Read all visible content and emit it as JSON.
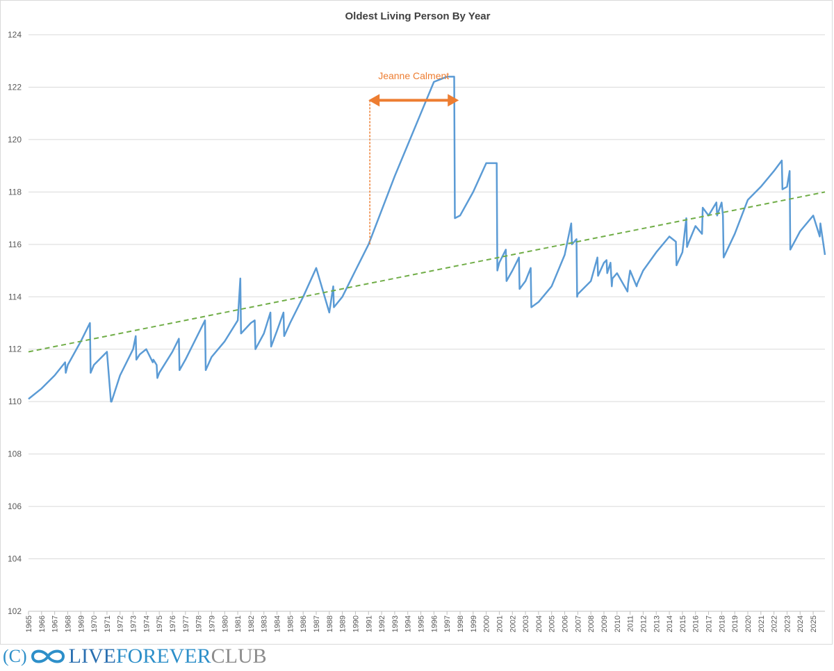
{
  "chart_data": {
    "type": "line",
    "title": "Oldest Living Person By Year",
    "xlabel": "",
    "ylabel": "",
    "ylim": [
      102,
      124
    ],
    "yticks": [
      102,
      104,
      106,
      108,
      110,
      112,
      114,
      116,
      118,
      120,
      122,
      124
    ],
    "xlim": [
      1965,
      2025.9
    ],
    "xticks": [
      1965,
      1966,
      1967,
      1968,
      1969,
      1970,
      1971,
      1972,
      1973,
      1974,
      1975,
      1976,
      1977,
      1978,
      1979,
      1980,
      1981,
      1982,
      1983,
      1984,
      1985,
      1986,
      1987,
      1988,
      1989,
      1990,
      1991,
      1992,
      1993,
      1994,
      1995,
      1996,
      1997,
      1998,
      1999,
      2000,
      2001,
      2002,
      2003,
      2004,
      2005,
      2006,
      2007,
      2008,
      2009,
      2010,
      2011,
      2012,
      2013,
      2014,
      2015,
      2016,
      2017,
      2018,
      2019,
      2020,
      2021,
      2022,
      2023,
      2024,
      2025
    ],
    "grid": true,
    "legend": "none",
    "series": [
      {
        "color": "#5b9bd5",
        "x": [
          1965.0,
          1966.0,
          1967.0,
          1967.8,
          1967.85,
          1968.0,
          1969.0,
          1969.7,
          1969.75,
          1970.0,
          1971.0,
          1971.3,
          1971.35,
          1972.0,
          1973.0,
          1973.2,
          1973.25,
          1973.5,
          1974.0,
          1974.5,
          1974.55,
          1974.8,
          1974.85,
          1975.0,
          1976.0,
          1976.5,
          1976.55,
          1977.0,
          1978.0,
          1978.5,
          1978.55,
          1979.0,
          1980.0,
          1981.0,
          1981.2,
          1981.25,
          1982.0,
          1982.3,
          1982.35,
          1983.0,
          1983.5,
          1983.55,
          1984.0,
          1984.5,
          1984.55,
          1985.0,
          1986.0,
          1987.0,
          1988.0,
          1988.3,
          1988.35,
          1989.0,
          1990.0,
          1991.0,
          1992.0,
          1993.0,
          1994.0,
          1995.0,
          1996.0,
          1997.0,
          1997.55,
          1997.6,
          1998.0,
          1999.0,
          2000.0,
          2000.8,
          2000.85,
          2001.0,
          2001.5,
          2001.55,
          2002.0,
          2002.5,
          2002.55,
          2003.0,
          2003.4,
          2003.45,
          2004.0,
          2005.0,
          2006.0,
          2006.5,
          2006.55,
          2006.9,
          2006.95,
          2007.0,
          2008.0,
          2008.5,
          2008.55,
          2009.0,
          2009.2,
          2009.25,
          2009.5,
          2009.6,
          2009.65,
          2010.0,
          2010.8,
          2010.85,
          2011.0,
          2011.5,
          2011.55,
          2012.0,
          2013.0,
          2014.0,
          2014.5,
          2014.55,
          2015.0,
          2015.3,
          2015.35,
          2015.5,
          2016.0,
          2016.5,
          2016.55,
          2017.0,
          2017.6,
          2017.65,
          2018.0,
          2018.1,
          2018.15,
          2019.0,
          2020.0,
          2021.0,
          2022.0,
          2022.6,
          2022.65,
          2023.0,
          2023.2,
          2023.25,
          2024.0,
          2025.0,
          2025.5,
          2025.55,
          2025.9
        ],
        "y": [
          110.1,
          110.5,
          111.0,
          111.5,
          111.1,
          111.4,
          112.3,
          113.0,
          111.1,
          111.4,
          111.9,
          110.0,
          110.0,
          111.0,
          112.0,
          112.5,
          111.6,
          111.8,
          112.0,
          111.5,
          111.6,
          111.4,
          110.9,
          111.1,
          111.9,
          112.4,
          111.2,
          111.6,
          112.6,
          113.1,
          111.2,
          111.7,
          112.3,
          113.1,
          114.7,
          112.6,
          113.0,
          113.1,
          112.0,
          112.6,
          113.4,
          112.1,
          112.7,
          113.4,
          112.5,
          113.0,
          114.0,
          115.1,
          113.4,
          114.4,
          113.6,
          114.0,
          115.0,
          116.0,
          117.3,
          118.6,
          119.8,
          121.0,
          122.2,
          122.4,
          122.4,
          117.0,
          117.1,
          118.0,
          119.1,
          119.1,
          115.0,
          115.3,
          115.8,
          114.6,
          115.0,
          115.5,
          114.3,
          114.6,
          115.1,
          113.6,
          113.8,
          114.4,
          115.6,
          116.8,
          116.0,
          116.2,
          114.0,
          114.1,
          114.6,
          115.5,
          114.8,
          115.3,
          115.4,
          114.9,
          115.3,
          114.4,
          114.7,
          114.9,
          114.2,
          114.5,
          115.0,
          114.4,
          114.5,
          115.0,
          115.7,
          116.3,
          116.1,
          115.2,
          115.7,
          117.0,
          115.9,
          116.1,
          116.7,
          116.4,
          117.4,
          117.1,
          117.6,
          117.1,
          117.6,
          117.1,
          115.5,
          116.4,
          117.7,
          118.2,
          118.8,
          119.2,
          118.1,
          118.2,
          118.8,
          115.8,
          116.5,
          117.1,
          116.3,
          116.8,
          115.6
        ]
      },
      {
        "color": "#70ad47",
        "dashed": true,
        "x": [
          1965.0,
          2025.9
        ],
        "y": [
          111.9,
          118.0
        ]
      }
    ],
    "annotations": [
      {
        "text": "Jeanne Calment",
        "color": "#ed7d31",
        "arrow_x": [
          1991.1,
          1997.8
        ],
        "arrow_y": 121.5,
        "drop_x": 1991.1,
        "drop_y_from": 121.5,
        "drop_y_to": 116.0,
        "text_y": 122.3
      }
    ]
  },
  "footer": {
    "copyright": "(C)",
    "logo_icon": "infinity-icon",
    "word1": "LIVE",
    "word2": "FOREVER",
    "word3": "CLUB"
  }
}
